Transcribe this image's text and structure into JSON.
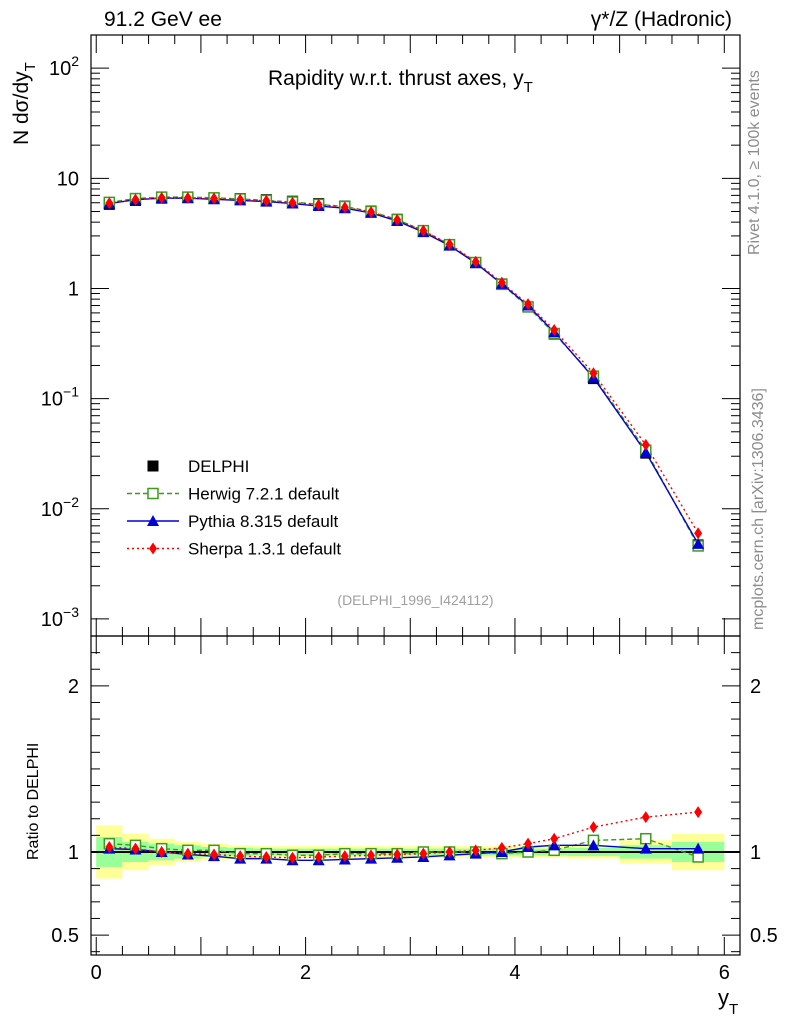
{
  "header": {
    "left": "91.2 GeV ee",
    "right": "γ*/Z (Hadronic)"
  },
  "side_labels": {
    "rivet": "Rivet 4.1.0, ≥ 100k events",
    "mcplots": "mcplots.cern.ch [arXiv:1306.3436]"
  },
  "chart_data": [
    {
      "type": "scatter",
      "title": "Rapidity w.r.t. thrust axes, y_T",
      "xlabel": "y_T",
      "ylabel": "N dσ/dy_T",
      "yscale": "log",
      "xlim": [
        -0.05,
        6.15
      ],
      "ylim": [
        0.0007,
        200
      ],
      "ytick_labels": [
        "10^-3",
        "10^-2",
        "10^-1",
        "1",
        "10",
        "10^2"
      ],
      "watermark": "(DELPHI_1996_I424112)",
      "x": [
        0.125,
        0.375,
        0.625,
        0.875,
        1.125,
        1.375,
        1.625,
        1.875,
        2.125,
        2.375,
        2.625,
        2.875,
        3.125,
        3.375,
        3.625,
        3.875,
        4.125,
        4.375,
        4.75,
        5.25,
        5.75
      ],
      "series": [
        {
          "name": "DELPHI",
          "color": "#000000",
          "marker": "square-filled",
          "values": [
            5.8,
            6.3,
            6.6,
            6.7,
            6.6,
            6.55,
            6.4,
            6.2,
            5.9,
            5.6,
            5.05,
            4.25,
            3.35,
            2.5,
            1.72,
            1.1,
            0.68,
            0.385,
            0.152,
            0.032,
            0.0047
          ]
        },
        {
          "name": "Herwig 7.2.1 default",
          "color": "#3d9a1c",
          "marker": "square-open",
          "line": "dashed",
          "values": [
            6.05,
            6.55,
            6.75,
            6.75,
            6.65,
            6.5,
            6.3,
            6.1,
            5.8,
            5.55,
            5.0,
            4.22,
            3.35,
            2.5,
            1.72,
            1.09,
            0.68,
            0.39,
            0.16,
            0.034,
            0.0046
          ]
        },
        {
          "name": "Pythia 8.315 default",
          "color": "#0000d8",
          "marker": "triangle",
          "line": "solid",
          "values": [
            5.9,
            6.4,
            6.6,
            6.6,
            6.45,
            6.3,
            6.15,
            5.9,
            5.6,
            5.35,
            4.85,
            4.1,
            3.25,
            2.45,
            1.7,
            1.1,
            0.7,
            0.4,
            0.155,
            0.0325,
            0.0048
          ]
        },
        {
          "name": "Sherpa 1.3.1 default",
          "color": "#ff0000",
          "marker": "diamond",
          "line": "dotted",
          "values": [
            5.95,
            6.4,
            6.65,
            6.65,
            6.55,
            6.4,
            6.25,
            6.0,
            5.75,
            5.45,
            4.95,
            4.2,
            3.35,
            2.52,
            1.75,
            1.13,
            0.72,
            0.42,
            0.17,
            0.038,
            0.006
          ]
        }
      ]
    },
    {
      "type": "scatter",
      "title": "",
      "xlabel": "y_T",
      "ylabel": "Ratio to DELPHI",
      "xlim": [
        -0.05,
        6.15
      ],
      "ylim": [
        0.38,
        2.3
      ],
      "y_ticks": [
        0.5,
        1,
        2
      ],
      "x_ticks": [
        0,
        2,
        4,
        6
      ],
      "x": [
        0.125,
        0.375,
        0.625,
        0.875,
        1.125,
        1.375,
        1.625,
        1.875,
        2.125,
        2.375,
        2.625,
        2.875,
        3.125,
        3.375,
        3.625,
        3.875,
        4.125,
        4.375,
        4.75,
        5.25,
        5.75
      ],
      "bin_edges": [
        0,
        0.25,
        0.5,
        0.75,
        1.0,
        1.25,
        1.5,
        1.75,
        2.0,
        2.25,
        2.5,
        2.75,
        3.0,
        3.25,
        3.5,
        3.75,
        4.0,
        4.25,
        4.5,
        5.0,
        5.5,
        6.0
      ],
      "uncertainty_stat": [
        0.09,
        0.06,
        0.05,
        0.04,
        0.03,
        0.025,
        0.02,
        0.02,
        0.02,
        0.02,
        0.02,
        0.02,
        0.02,
        0.02,
        0.02,
        0.02,
        0.02,
        0.02,
        0.025,
        0.04,
        0.06
      ],
      "uncertainty_total": [
        0.16,
        0.11,
        0.08,
        0.06,
        0.05,
        0.04,
        0.035,
        0.035,
        0.035,
        0.035,
        0.035,
        0.035,
        0.035,
        0.035,
        0.035,
        0.035,
        0.035,
        0.035,
        0.04,
        0.07,
        0.11
      ],
      "series": [
        {
          "name": "Herwig 7.2.1 default",
          "color": "#3d9a1c",
          "values": [
            1.05,
            1.04,
            1.02,
            1.01,
            1.01,
            0.99,
            0.99,
            0.98,
            0.98,
            0.99,
            0.99,
            0.99,
            1.0,
            1.0,
            1.0,
            0.99,
            1.0,
            1.01,
            1.07,
            1.08,
            0.97
          ]
        },
        {
          "name": "Pythia 8.315 default",
          "color": "#0000d8",
          "values": [
            1.02,
            1.015,
            1.0,
            0.985,
            0.975,
            0.96,
            0.96,
            0.95,
            0.95,
            0.955,
            0.96,
            0.965,
            0.97,
            0.98,
            0.99,
            1.0,
            1.03,
            1.04,
            1.04,
            1.02,
            1.02
          ]
        },
        {
          "name": "Sherpa 1.3.1 default",
          "color": "#ff0000",
          "values": [
            1.03,
            1.02,
            1.0,
            0.99,
            0.985,
            0.975,
            0.97,
            0.965,
            0.97,
            0.975,
            0.98,
            0.985,
            0.99,
            1.0,
            1.01,
            1.025,
            1.05,
            1.08,
            1.15,
            1.21,
            1.24
          ]
        }
      ]
    }
  ]
}
